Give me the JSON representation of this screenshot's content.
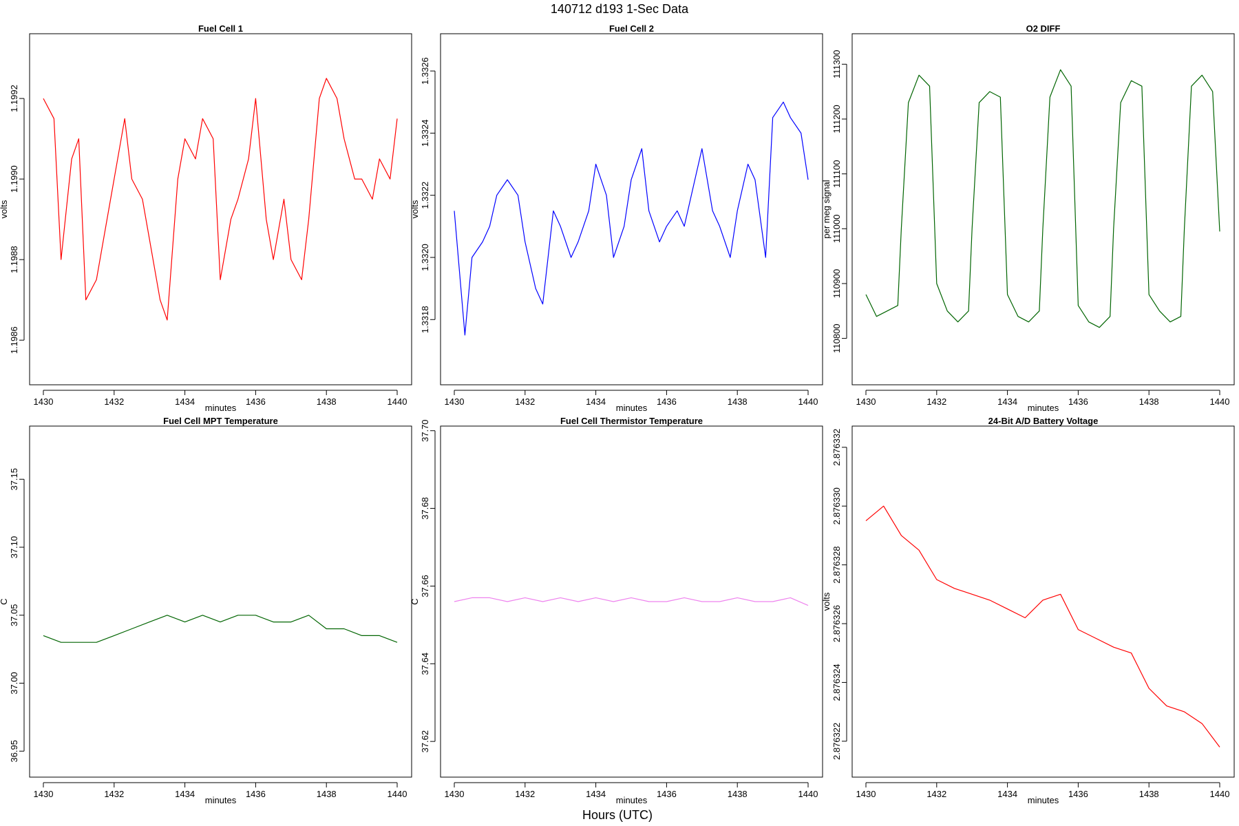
{
  "figure": {
    "title": "140712   d193   1-Sec Data",
    "outer_xlabel": "Hours (UTC)"
  },
  "chart_data": [
    {
      "type": "line",
      "title": "Fuel Cell 1",
      "xlabel": "minutes",
      "ylabel": "volts",
      "color": "#ff0000",
      "xlim": [
        1430,
        1440
      ],
      "ylim": [
        1.19852,
        1.19933
      ],
      "x_ticks": [
        1430,
        1432,
        1434,
        1436,
        1438,
        1440
      ],
      "y_ticks": [
        1.1986,
        1.1988,
        1.199,
        1.1992
      ],
      "y_tick_labels": [
        "1.1986",
        "1.1988",
        "1.1990",
        "1.1992"
      ],
      "series": [
        {
          "x": [
            1430.0,
            1430.3,
            1430.5,
            1430.8,
            1431.0,
            1431.2,
            1431.5,
            1431.8,
            1432.0,
            1432.3,
            1432.5,
            1432.8,
            1433.0,
            1433.3,
            1433.5,
            1433.8,
            1434.0,
            1434.3,
            1434.5,
            1434.8,
            1435.0,
            1435.3,
            1435.5,
            1435.8,
            1436.0,
            1436.3,
            1436.5,
            1436.8,
            1437.0,
            1437.3,
            1437.5,
            1437.8,
            1438.0,
            1438.3,
            1438.5,
            1438.8,
            1439.0,
            1439.3,
            1439.5,
            1439.8,
            1440.0
          ],
          "values": [
            1.1992,
            1.19915,
            1.1988,
            1.19905,
            1.1991,
            1.1987,
            1.19875,
            1.1989,
            1.199,
            1.19915,
            1.199,
            1.19895,
            1.19885,
            1.1987,
            1.19865,
            1.199,
            1.1991,
            1.19905,
            1.19915,
            1.1991,
            1.19875,
            1.1989,
            1.19895,
            1.19905,
            1.1992,
            1.1989,
            1.1988,
            1.19895,
            1.1988,
            1.19875,
            1.1989,
            1.1992,
            1.19925,
            1.1992,
            1.1991,
            1.199,
            1.199,
            1.19895,
            1.19905,
            1.199,
            1.19915
          ]
        }
      ]
    },
    {
      "type": "line",
      "title": "Fuel Cell 2",
      "xlabel": "minutes",
      "ylabel": "volts",
      "color": "#0000ff",
      "xlim": [
        1430,
        1440
      ],
      "ylim": [
        1.33163,
        1.33268
      ],
      "x_ticks": [
        1430,
        1432,
        1434,
        1436,
        1438,
        1440
      ],
      "y_ticks": [
        1.3318,
        1.332,
        1.3322,
        1.3324,
        1.3326
      ],
      "y_tick_labels": [
        "1.3318",
        "1.3320",
        "1.3322",
        "1.3324",
        "1.3326"
      ],
      "series": [
        {
          "x": [
            1430.0,
            1430.3,
            1430.5,
            1430.8,
            1431.0,
            1431.2,
            1431.5,
            1431.8,
            1432.0,
            1432.3,
            1432.5,
            1432.8,
            1433.0,
            1433.3,
            1433.5,
            1433.8,
            1434.0,
            1434.3,
            1434.5,
            1434.8,
            1435.0,
            1435.3,
            1435.5,
            1435.8,
            1436.0,
            1436.3,
            1436.5,
            1436.8,
            1437.0,
            1437.3,
            1437.5,
            1437.8,
            1438.0,
            1438.3,
            1438.5,
            1438.8,
            1439.0,
            1439.3,
            1439.5,
            1439.8,
            1440.0
          ],
          "values": [
            1.33215,
            1.33175,
            1.332,
            1.33205,
            1.3321,
            1.3322,
            1.33225,
            1.3322,
            1.33205,
            1.3319,
            1.33185,
            1.33215,
            1.3321,
            1.332,
            1.33205,
            1.33215,
            1.3323,
            1.3322,
            1.332,
            1.3321,
            1.33225,
            1.33235,
            1.33215,
            1.33205,
            1.3321,
            1.33215,
            1.3321,
            1.33225,
            1.33235,
            1.33215,
            1.3321,
            1.332,
            1.33215,
            1.3323,
            1.33225,
            1.332,
            1.33245,
            1.3325,
            1.33245,
            1.3324,
            1.33225
          ]
        }
      ]
    },
    {
      "type": "line",
      "title": "O2 DIFF",
      "xlabel": "minutes",
      "ylabel": "per meg signal",
      "color": "#006400",
      "xlim": [
        1430,
        1440
      ],
      "ylim": [
        110738,
        111333
      ],
      "x_ticks": [
        1430,
        1432,
        1434,
        1436,
        1438,
        1440
      ],
      "y_ticks": [
        110800,
        110900,
        111000,
        111100,
        111200,
        111300
      ],
      "y_tick_labels": [
        "110800",
        "110900",
        "111000",
        "111100",
        "111200",
        "111300"
      ],
      "series": [
        {
          "x": [
            1430.0,
            1430.3,
            1430.6,
            1430.9,
            1431.0,
            1431.2,
            1431.5,
            1431.8,
            1432.0,
            1432.3,
            1432.6,
            1432.9,
            1433.0,
            1433.2,
            1433.5,
            1433.8,
            1434.0,
            1434.3,
            1434.6,
            1434.9,
            1435.0,
            1435.2,
            1435.5,
            1435.8,
            1436.0,
            1436.3,
            1436.6,
            1436.9,
            1437.0,
            1437.2,
            1437.5,
            1437.8,
            1438.0,
            1438.3,
            1438.6,
            1438.9,
            1439.0,
            1439.2,
            1439.5,
            1439.8,
            1440.0
          ],
          "values": [
            110880,
            110840,
            110850,
            110860,
            111000,
            111230,
            111280,
            111260,
            110900,
            110850,
            110830,
            110850,
            111000,
            111230,
            111250,
            111240,
            110880,
            110840,
            110830,
            110850,
            111000,
            111240,
            111290,
            111260,
            110860,
            110830,
            110820,
            110840,
            111000,
            111230,
            111270,
            111260,
            110880,
            110850,
            110830,
            110840,
            111000,
            111260,
            111280,
            111250,
            110995
          ]
        }
      ]
    },
    {
      "type": "line",
      "title": "Fuel Cell MPT Temperature",
      "xlabel": "minutes",
      "ylabel": "C",
      "color": "#006400",
      "xlim": [
        1430,
        1440
      ],
      "ylim": [
        36.94,
        37.18
      ],
      "x_ticks": [
        1430,
        1432,
        1434,
        1436,
        1438,
        1440
      ],
      "y_ticks": [
        36.95,
        37.0,
        37.05,
        37.1,
        37.15
      ],
      "y_tick_labels": [
        "36.95",
        "37.00",
        "37.05",
        "37.10",
        "37.15"
      ],
      "series": [
        {
          "x": [
            1430.0,
            1430.5,
            1431.0,
            1431.5,
            1432.0,
            1432.5,
            1433.0,
            1433.5,
            1434.0,
            1434.5,
            1435.0,
            1435.5,
            1436.0,
            1436.5,
            1437.0,
            1437.5,
            1438.0,
            1438.5,
            1439.0,
            1439.5,
            1440.0
          ],
          "values": [
            37.035,
            37.03,
            37.03,
            37.03,
            37.035,
            37.04,
            37.045,
            37.05,
            37.045,
            37.05,
            37.045,
            37.05,
            37.05,
            37.045,
            37.045,
            37.05,
            37.04,
            37.04,
            37.035,
            37.035,
            37.03
          ]
        }
      ]
    },
    {
      "type": "line",
      "title": "Fuel Cell Thermistor Temperature",
      "xlabel": "minutes",
      "ylabel": "C",
      "color": "#ee82ee",
      "xlim": [
        1430,
        1440
      ],
      "ylim": [
        37.614,
        37.698
      ],
      "x_ticks": [
        1430,
        1432,
        1434,
        1436,
        1438,
        1440
      ],
      "y_ticks": [
        37.62,
        37.64,
        37.66,
        37.68,
        37.7
      ],
      "y_tick_labels": [
        "37.62",
        "37.64",
        "37.66",
        "37.68",
        "37.70"
      ],
      "series": [
        {
          "x": [
            1430.0,
            1430.5,
            1431.0,
            1431.5,
            1432.0,
            1432.5,
            1433.0,
            1433.5,
            1434.0,
            1434.5,
            1435.0,
            1435.5,
            1436.0,
            1436.5,
            1437.0,
            1437.5,
            1438.0,
            1438.5,
            1439.0,
            1439.5,
            1440.0
          ],
          "values": [
            37.656,
            37.657,
            37.657,
            37.656,
            37.657,
            37.656,
            37.657,
            37.656,
            37.657,
            37.656,
            37.657,
            37.656,
            37.656,
            37.657,
            37.656,
            37.656,
            37.657,
            37.656,
            37.656,
            37.657,
            37.655
          ]
        }
      ]
    },
    {
      "type": "line",
      "title": "24-Bit A/D Battery Voltage",
      "xlabel": "minutes",
      "ylabel": "volts",
      "color": "#ff0000",
      "xlim": [
        1430,
        1440
      ],
      "ylim": [
        2.8763212,
        2.8763323
      ],
      "x_ticks": [
        1430,
        1432,
        1434,
        1436,
        1438,
        1440
      ],
      "y_ticks": [
        2.876322,
        2.876324,
        2.876326,
        2.876328,
        2.87633,
        2.876332
      ],
      "y_tick_labels": [
        "2.876322",
        "2.876324",
        "2.876326",
        "2.876328",
        "2.876330",
        "2.876332"
      ],
      "series": [
        {
          "x": [
            1430.0,
            1430.5,
            1431.0,
            1431.5,
            1432.0,
            1432.5,
            1433.0,
            1433.5,
            1434.0,
            1434.5,
            1435.0,
            1435.5,
            1436.0,
            1436.5,
            1437.0,
            1437.5,
            1438.0,
            1438.5,
            1439.0,
            1439.5,
            1440.0
          ],
          "values": [
            2.8763295,
            2.87633,
            2.876329,
            2.8763285,
            2.8763275,
            2.8763272,
            2.876327,
            2.8763268,
            2.8763265,
            2.8763262,
            2.8763268,
            2.876327,
            2.8763258,
            2.8763255,
            2.8763252,
            2.876325,
            2.8763238,
            2.8763232,
            2.876323,
            2.8763226,
            2.8763218
          ]
        }
      ]
    }
  ]
}
